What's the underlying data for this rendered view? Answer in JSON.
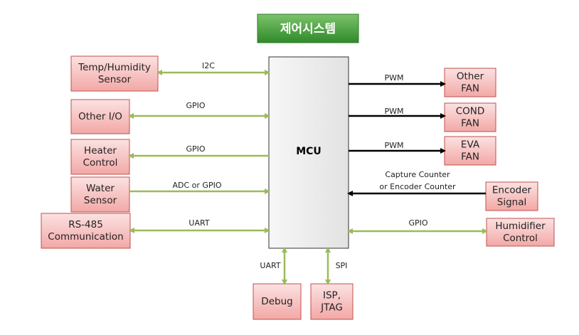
{
  "title": "제어시스템",
  "mcu": "MCU",
  "nodes": [
    {
      "label": [
        "Temp/Humidity",
        "Sensor"
      ]
    },
    {
      "label": [
        "Other I/O"
      ]
    },
    {
      "label": [
        "Heater",
        "Control"
      ]
    },
    {
      "label": [
        "Water",
        "Sensor"
      ]
    },
    {
      "label": [
        "RS-485",
        "Communication"
      ]
    },
    {
      "label": [
        "Other",
        "FAN"
      ]
    },
    {
      "label": [
        "COND",
        "FAN"
      ]
    },
    {
      "label": [
        "EVA",
        "FAN"
      ]
    },
    {
      "label": [
        "Encoder",
        "Signal"
      ]
    },
    {
      "label": [
        "Humidifier",
        "Control"
      ]
    },
    {
      "label": [
        "Debug"
      ]
    },
    {
      "label": [
        "ISP,",
        "JTAG"
      ]
    }
  ],
  "edges": [
    {
      "label": [
        "I2C"
      ]
    },
    {
      "label": [
        "GPIO"
      ]
    },
    {
      "label": [
        "GPIO"
      ]
    },
    {
      "label": [
        "ADC or GPIO"
      ]
    },
    {
      "label": [
        "UART"
      ]
    },
    {
      "label": [
        "PWM"
      ]
    },
    {
      "label": [
        "PWM"
      ]
    },
    {
      "label": [
        "PWM"
      ]
    },
    {
      "label": [
        "Capture Counter",
        "or Encoder Counter"
      ]
    },
    {
      "label": [
        "GPIO"
      ]
    },
    {
      "label": [
        "UART"
      ]
    },
    {
      "label": [
        "SPI"
      ]
    }
  ]
}
